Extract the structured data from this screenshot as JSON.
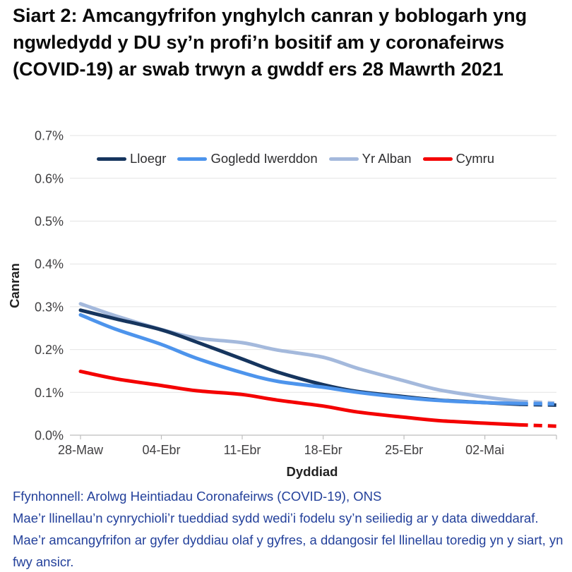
{
  "title": "Siart 2: Amcangyfrifon ynghylch canran y boblogarh yng ngwledydd y DU sy’n profi’n bositif am y coronafeirws (COVID-19) ar swab trwyn a gwddf ers 28 Mawrth 2021",
  "footer": {
    "source": "Ffynhonnell: Arolwg Heintiadau Coronafeirws (COVID-19), ONS",
    "note": "Mae’r llinellau’n cynrychioli’r tueddiad sydd wedi’i fodelu sy’n seiliedig ar y data diweddaraf. Mae’r amcangyfrifon ar gyfer dyddiau olaf y gyfres, a ddangosir fel llinellau toredig yn y siart, yn fwy ansicr.",
    "text_color": "#24419b"
  },
  "chart_data": {
    "type": "line",
    "title": "Siart 2: Amcangyfrifon ynghylch canran y boblogarh yng ngwledydd y DU sy’n profi’n bositif am y coronafeirws (COVID-19) ar swab trwyn a gwddf ers 28 Mawrth 2021",
    "xlabel": "Dyddiad",
    "ylabel": "Canran",
    "unit": "%",
    "ylim": [
      0,
      0.7
    ],
    "grid": true,
    "legend_position": "top-inside",
    "y_ticks": [
      {
        "value": 0.0,
        "label": "0.0%"
      },
      {
        "value": 0.1,
        "label": "0.1%"
      },
      {
        "value": 0.2,
        "label": "0.2%"
      },
      {
        "value": 0.3,
        "label": "0.3%"
      },
      {
        "value": 0.4,
        "label": "0.4%"
      },
      {
        "value": 0.5,
        "label": "0.5%"
      },
      {
        "value": 0.6,
        "label": "0.6%"
      },
      {
        "value": 0.7,
        "label": "0.7%"
      }
    ],
    "x_ticks": [
      {
        "day": 0,
        "label": "28-Maw"
      },
      {
        "day": 7,
        "label": "04-Ebr"
      },
      {
        "day": 14,
        "label": "11-Ebr"
      },
      {
        "day": 21,
        "label": "18-Ebr"
      },
      {
        "day": 28,
        "label": "25-Ebr"
      },
      {
        "day": 35,
        "label": "02-Mai"
      }
    ],
    "x_axis_start_date": "28 Mawrth 2021",
    "dashed_from_day": 38,
    "dashed_meaning": "llinellau toredig = amcangyfrifon mwy ansicr ar gyfer dyddiau olaf y gyfres",
    "colors": {
      "grid": "#e4e4e4",
      "axis": "#bdbdbd",
      "text": "#414042"
    },
    "draw_order": [
      2,
      0,
      1,
      3
    ],
    "series": [
      {
        "name": "Lloegr",
        "color": "#16355e",
        "points_day_pct": [
          [
            0,
            0.292
          ],
          [
            3,
            0.272
          ],
          [
            7,
            0.246
          ],
          [
            10,
            0.218
          ],
          [
            14,
            0.178
          ],
          [
            17,
            0.148
          ],
          [
            21,
            0.118
          ],
          [
            24,
            0.102
          ],
          [
            28,
            0.09
          ],
          [
            31,
            0.082
          ],
          [
            35,
            0.076
          ],
          [
            38,
            0.072
          ],
          [
            41.5,
            0.07
          ]
        ]
      },
      {
        "name": "Gogledd Iwerddon",
        "color": "#4d94ec",
        "points_day_pct": [
          [
            0,
            0.281
          ],
          [
            3,
            0.248
          ],
          [
            7,
            0.212
          ],
          [
            10,
            0.18
          ],
          [
            14,
            0.146
          ],
          [
            17,
            0.126
          ],
          [
            21,
            0.112
          ],
          [
            24,
            0.1
          ],
          [
            28,
            0.088
          ],
          [
            31,
            0.081
          ],
          [
            35,
            0.076
          ],
          [
            38,
            0.074
          ],
          [
            41,
            0.073
          ]
        ]
      },
      {
        "name": "Yr Alban",
        "color": "#a4b9dc",
        "points_day_pct": [
          [
            0,
            0.307
          ],
          [
            3,
            0.279
          ],
          [
            7,
            0.247
          ],
          [
            10,
            0.227
          ],
          [
            14,
            0.216
          ],
          [
            17,
            0.199
          ],
          [
            21,
            0.182
          ],
          [
            24,
            0.156
          ],
          [
            28,
            0.127
          ],
          [
            31,
            0.106
          ],
          [
            35,
            0.089
          ],
          [
            38,
            0.079
          ],
          [
            41,
            0.075
          ]
        ]
      },
      {
        "name": "Cymru",
        "color": "#f40000",
        "points_day_pct": [
          [
            0,
            0.149
          ],
          [
            3,
            0.132
          ],
          [
            7,
            0.116
          ],
          [
            10,
            0.104
          ],
          [
            14,
            0.095
          ],
          [
            17,
            0.082
          ],
          [
            21,
            0.068
          ],
          [
            24,
            0.054
          ],
          [
            28,
            0.042
          ],
          [
            31,
            0.034
          ],
          [
            35,
            0.028
          ],
          [
            38,
            0.024
          ],
          [
            41.3,
            0.021
          ]
        ]
      }
    ]
  }
}
